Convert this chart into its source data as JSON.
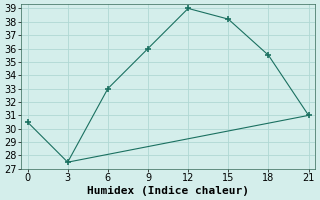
{
  "line1_x": [
    0,
    3,
    6,
    9,
    12,
    15,
    18,
    21
  ],
  "line1_y": [
    30.5,
    27.5,
    33,
    36,
    39,
    38.2,
    35.5,
    31
  ],
  "line2_x": [
    3,
    21
  ],
  "line2_y": [
    27.5,
    31
  ],
  "line_color": "#1a7060",
  "bg_color": "#d4eeeb",
  "grid_color": "#b0d8d4",
  "xlabel": "Humidex (Indice chaleur)",
  "xlim": [
    -0.5,
    21.5
  ],
  "ylim": [
    27,
    39.3
  ],
  "xticks": [
    0,
    3,
    6,
    9,
    12,
    15,
    18,
    21
  ],
  "yticks": [
    27,
    28,
    29,
    30,
    31,
    32,
    33,
    34,
    35,
    36,
    37,
    38,
    39
  ],
  "xlabel_fontsize": 8,
  "tick_fontsize": 7
}
